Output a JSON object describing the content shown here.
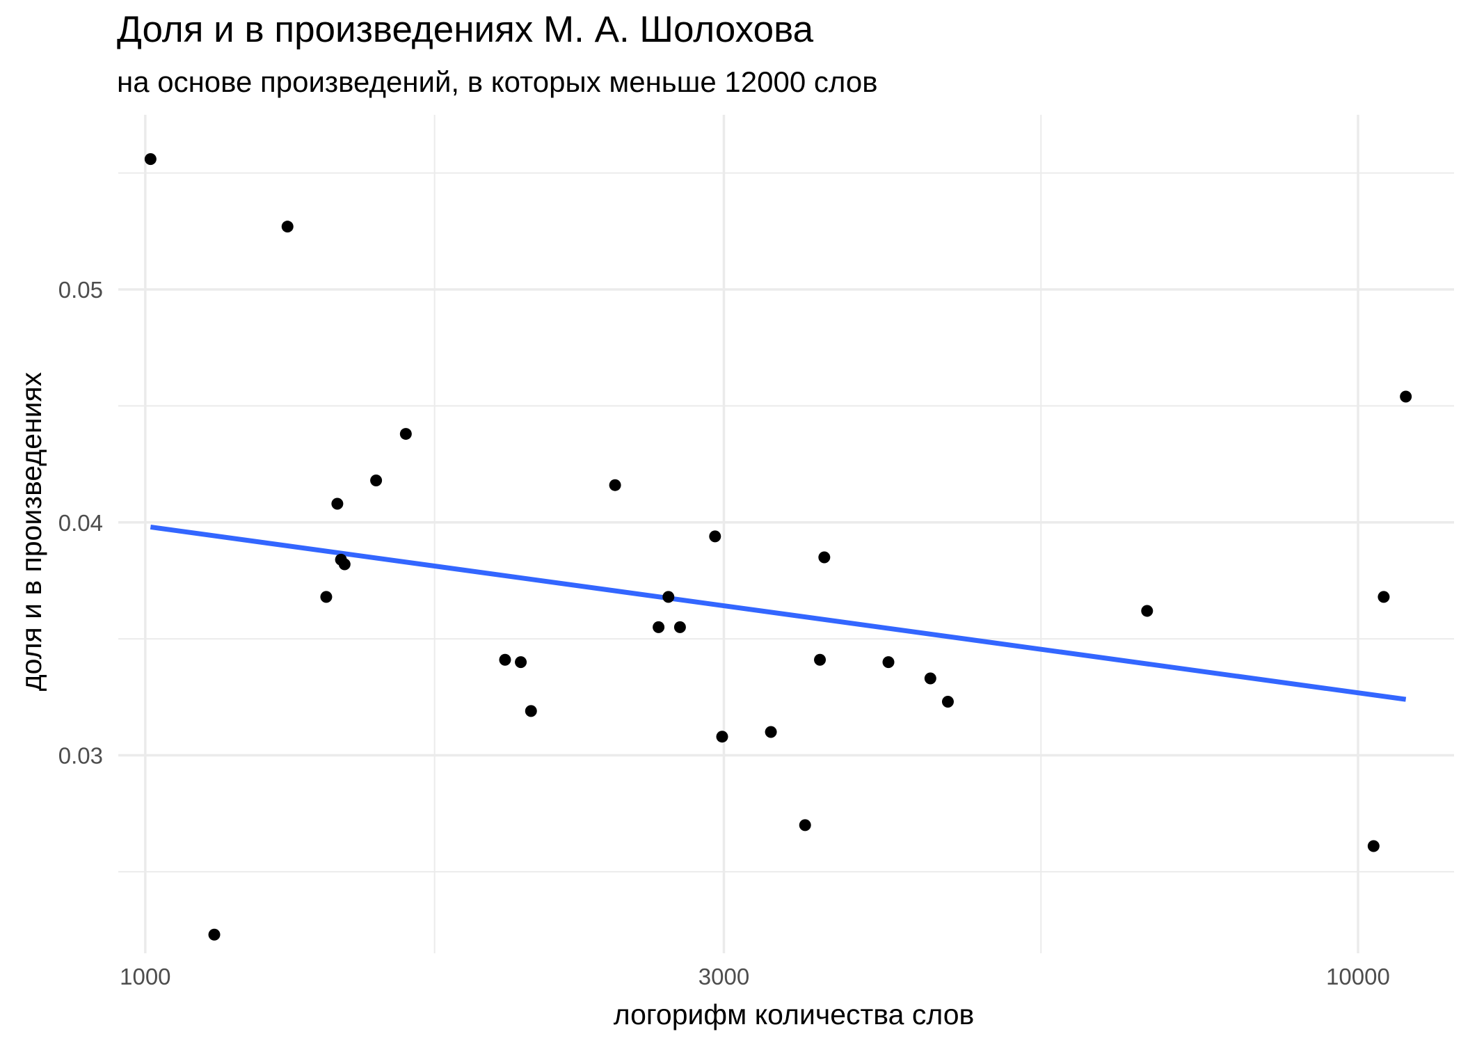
{
  "chart_data": {
    "type": "scatter",
    "title": "Доля и в произведениях М. А. Шолохова",
    "subtitle": "на основе произведений, в которых меньше 12000 слов",
    "xlabel": "логорифм количества слов",
    "ylabel": "доля и в произведениях",
    "x_scale": "log10",
    "xlim": [
      950,
      12000
    ],
    "ylim": [
      0.0215,
      0.0575
    ],
    "x_ticks": [
      1000,
      3000,
      10000
    ],
    "x_tick_labels": [
      "1000",
      "3000",
      "10000"
    ],
    "y_ticks": [
      0.03,
      0.04,
      0.05
    ],
    "y_tick_labels": [
      "0.03",
      "0.04",
      "0.05"
    ],
    "grid": true,
    "legend": "none",
    "colors": {
      "points": "#000000",
      "trend_line": "#3366ff",
      "grid": "#ebebeb"
    },
    "points": [
      {
        "x": 1010,
        "y": 0.0556
      },
      {
        "x": 1140,
        "y": 0.0223
      },
      {
        "x": 1310,
        "y": 0.0527
      },
      {
        "x": 1410,
        "y": 0.0368
      },
      {
        "x": 1440,
        "y": 0.0408
      },
      {
        "x": 1450,
        "y": 0.0384
      },
      {
        "x": 1460,
        "y": 0.0382
      },
      {
        "x": 1550,
        "y": 0.0418
      },
      {
        "x": 1640,
        "y": 0.0438
      },
      {
        "x": 1980,
        "y": 0.0341
      },
      {
        "x": 2040,
        "y": 0.034
      },
      {
        "x": 2080,
        "y": 0.0319
      },
      {
        "x": 2440,
        "y": 0.0416
      },
      {
        "x": 2650,
        "y": 0.0355
      },
      {
        "x": 2700,
        "y": 0.0368
      },
      {
        "x": 2760,
        "y": 0.0355
      },
      {
        "x": 2950,
        "y": 0.0394
      },
      {
        "x": 2990,
        "y": 0.0308
      },
      {
        "x": 3280,
        "y": 0.031
      },
      {
        "x": 3500,
        "y": 0.027
      },
      {
        "x": 3600,
        "y": 0.0341
      },
      {
        "x": 3630,
        "y": 0.0385
      },
      {
        "x": 4100,
        "y": 0.034
      },
      {
        "x": 4440,
        "y": 0.0333
      },
      {
        "x": 4590,
        "y": 0.0323
      },
      {
        "x": 6700,
        "y": 0.0362
      },
      {
        "x": 10300,
        "y": 0.0261
      },
      {
        "x": 10500,
        "y": 0.0368
      },
      {
        "x": 10950,
        "y": 0.0454
      }
    ],
    "trend_line": {
      "method": "lm",
      "x": [
        1010,
        10950
      ],
      "y": [
        0.0398,
        0.0324
      ]
    }
  }
}
